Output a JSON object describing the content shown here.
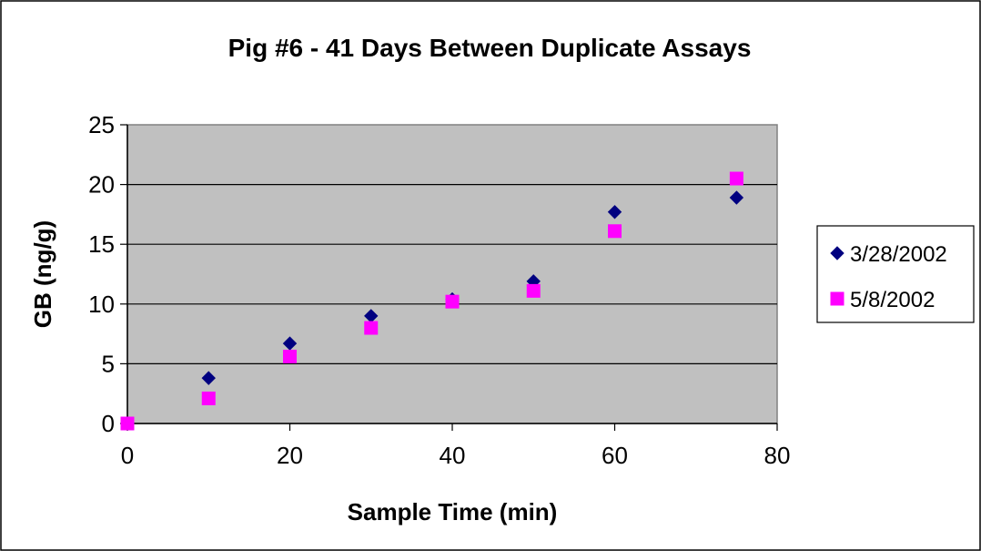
{
  "chart_data": {
    "type": "scatter",
    "title": "Pig #6 - 41 Days Between Duplicate Assays",
    "xlabel": "Sample Time (min)",
    "ylabel": "GB (ng/g)",
    "xlim": [
      0,
      80
    ],
    "ylim": [
      0,
      25
    ],
    "xticks": [
      0,
      20,
      40,
      60,
      80
    ],
    "yticks": [
      0,
      5,
      10,
      15,
      20,
      25
    ],
    "grid": "horizontal",
    "legend_position": "right",
    "plot_background": "#c0c0c0",
    "series": [
      {
        "name": "3/28/2002",
        "marker": "diamond",
        "color": "#000080",
        "x": [
          0,
          10,
          20,
          30,
          40,
          50,
          60,
          75
        ],
        "y": [
          0,
          3.8,
          6.7,
          9.0,
          10.4,
          11.9,
          17.7,
          18.9
        ]
      },
      {
        "name": "5/8/2002",
        "marker": "square",
        "color": "#ff00ff",
        "x": [
          0,
          10,
          20,
          30,
          40,
          50,
          60,
          75
        ],
        "y": [
          0,
          2.1,
          5.6,
          8.0,
          10.2,
          11.1,
          16.1,
          20.5
        ]
      }
    ]
  }
}
